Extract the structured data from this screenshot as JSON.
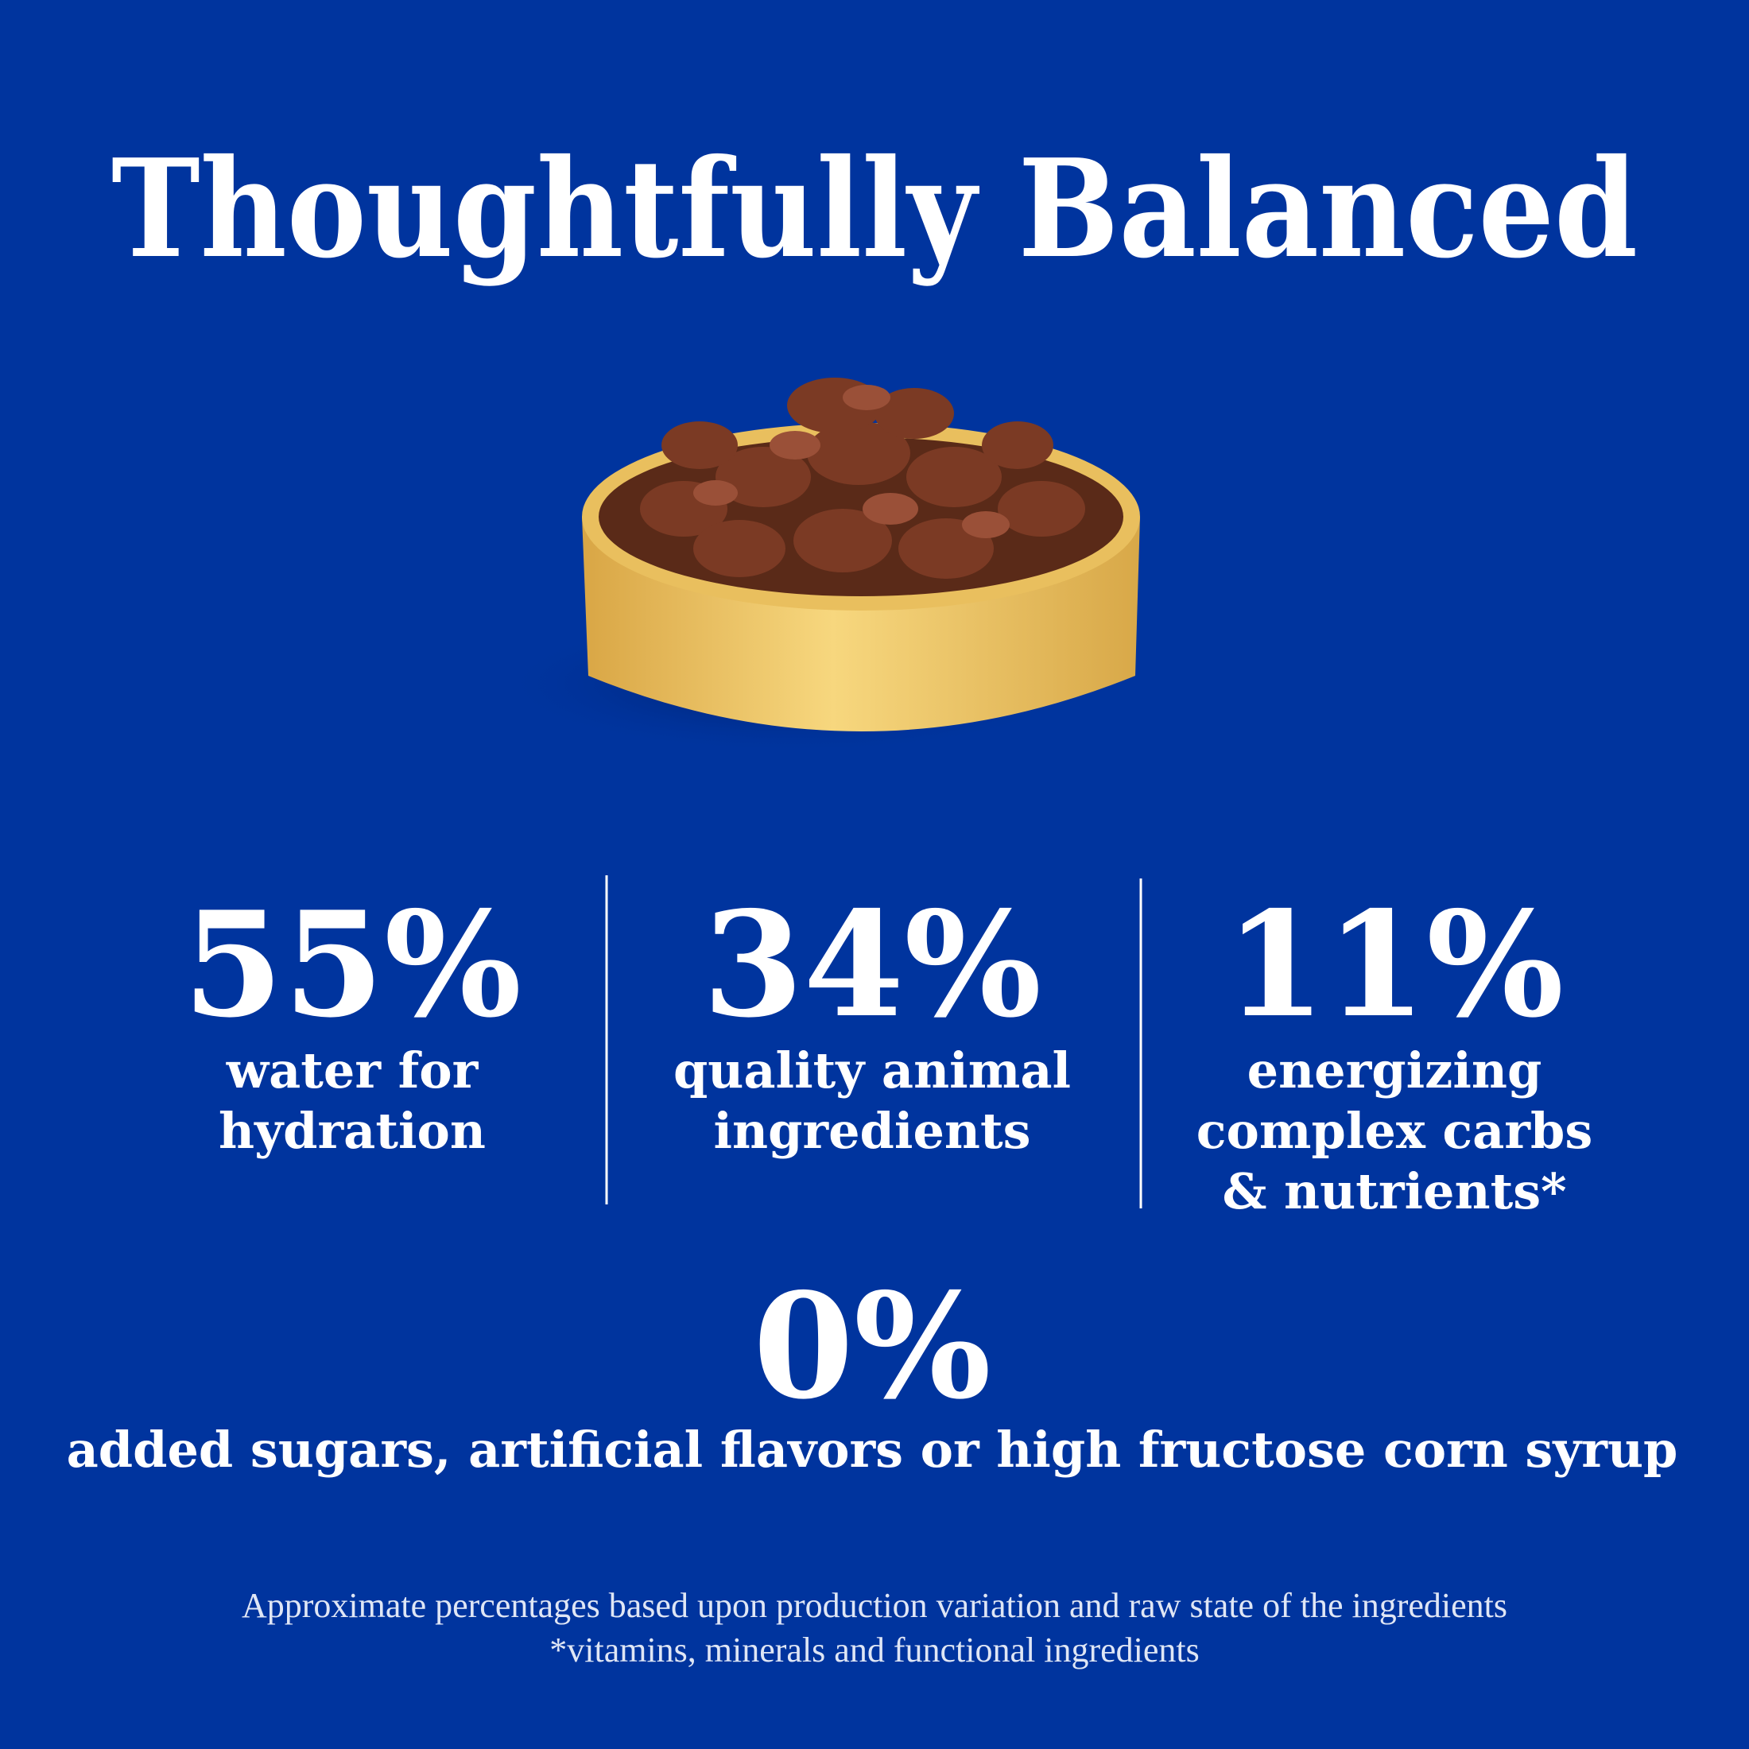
{
  "title": "Thoughtfully Balanced",
  "stats": [
    {
      "value": "55%",
      "lines": [
        "water for",
        "hydration"
      ]
    },
    {
      "value": "34%",
      "lines": [
        "quality animal",
        "ingredients"
      ]
    },
    {
      "value": "11%",
      "lines": [
        "energizing",
        "complex carbs",
        "& nutrients*"
      ]
    }
  ],
  "highlight": {
    "value": "0%",
    "text": "added sugars, artificial flavors or high fructose corn syrup"
  },
  "footnotes": [
    "Approximate percentages based upon production variation and raw state of the ingredients",
    "*vitamins, minerals and functional ingredients"
  ]
}
